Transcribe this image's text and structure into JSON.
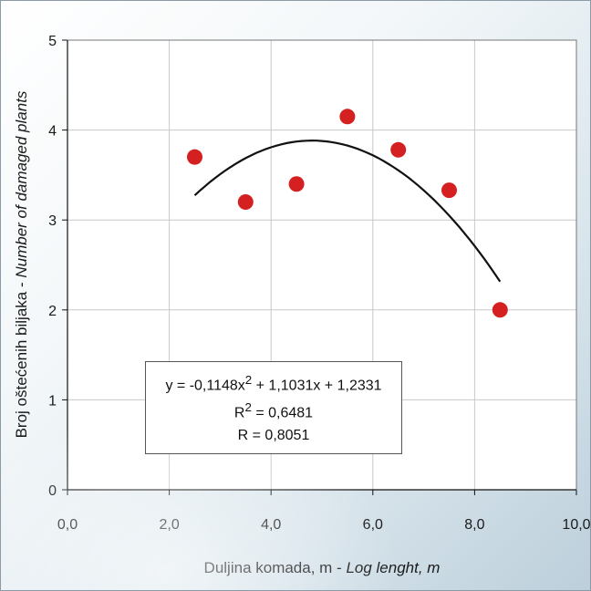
{
  "chart_data": {
    "type": "scatter",
    "xlabel_main": "Duljina komada, m - ",
    "xlabel_italic": "Log lenght, m",
    "ylabel_main": "Broj oštećenih biljaka - ",
    "ylabel_italic": "Number of damaged plants",
    "xlim": [
      0,
      10
    ],
    "ylim": [
      0,
      5
    ],
    "x_ticks": [
      "0,0",
      "2,0",
      "4,0",
      "6,0",
      "8,0",
      "10,0"
    ],
    "y_ticks": [
      "0",
      "1",
      "2",
      "3",
      "4",
      "5"
    ],
    "grid": true,
    "points": [
      {
        "x": 2.5,
        "y": 3.7
      },
      {
        "x": 3.5,
        "y": 3.2
      },
      {
        "x": 4.5,
        "y": 3.4
      },
      {
        "x": 5.5,
        "y": 4.15
      },
      {
        "x": 6.5,
        "y": 3.78
      },
      {
        "x": 7.5,
        "y": 3.33
      },
      {
        "x": 8.5,
        "y": 2.0
      }
    ],
    "trendline": {
      "type": "polynomial",
      "coefficients": [
        -0.1148,
        1.1031,
        1.2331
      ],
      "x_range": [
        2.5,
        8.5
      ]
    },
    "colors": {
      "points": "#d42020",
      "trendline": "#111111",
      "grid": "#c8c8c8"
    }
  },
  "equation": {
    "line1_prefix": "y = -0,1148x",
    "line1_exp": "2",
    "line1_suffix": " + 1,1031x + 1,2331",
    "r2_prefix": "R",
    "r2_exp": "2",
    "r2_suffix": " = 0,6481",
    "r_text": "R = 0,8051"
  }
}
